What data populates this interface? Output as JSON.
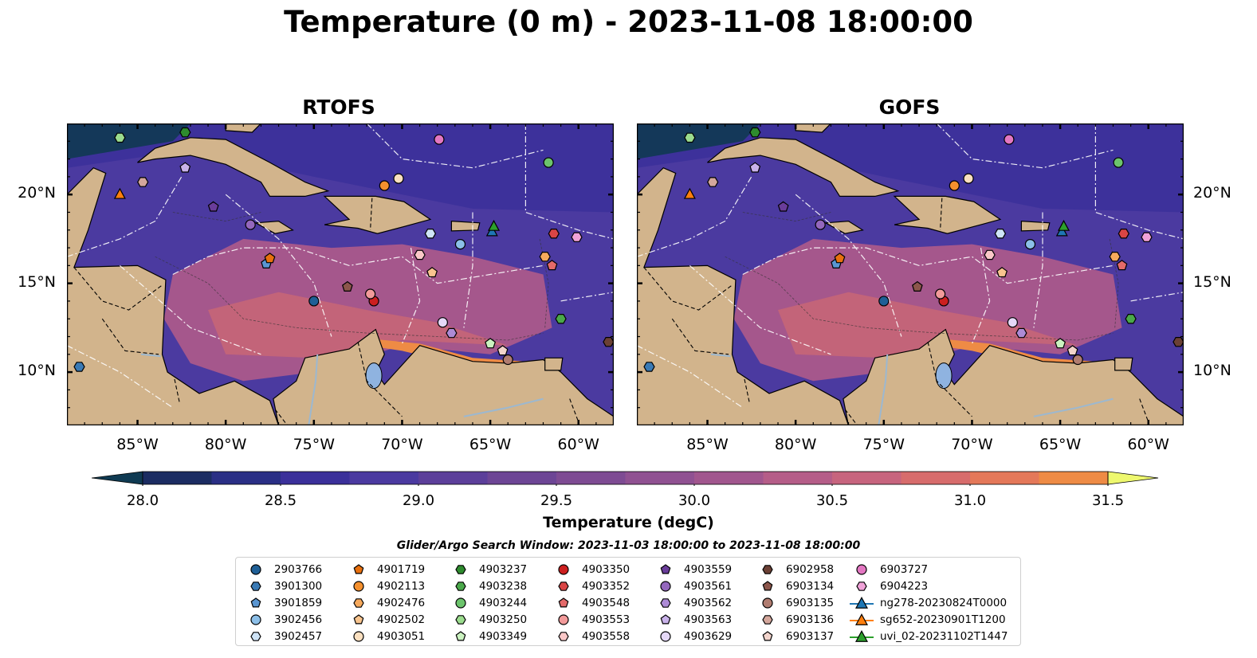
{
  "title": "Temperature (0 m) - 2023-11-08 18:00:00",
  "panels": [
    {
      "title": "RTOFS"
    },
    {
      "title": "GOFS"
    }
  ],
  "axes": {
    "lon_labels": [
      "85°W",
      "80°W",
      "75°W",
      "70°W",
      "65°W",
      "60°W"
    ],
    "lon_values": [
      -85,
      -80,
      -75,
      -70,
      -65,
      -60
    ],
    "lat_labels": [
      "20°N",
      "15°N",
      "10°N"
    ],
    "lat_values": [
      20,
      15,
      10
    ],
    "lon_range": [
      -89,
      -58
    ],
    "lat_range": [
      7,
      24
    ]
  },
  "colorbar": {
    "label": "Temperature (degC)",
    "ticks": [
      "28.0",
      "28.5",
      "29.0",
      "29.5",
      "30.0",
      "30.5",
      "31.0",
      "31.5"
    ],
    "tick_values": [
      28.0,
      28.5,
      29.0,
      29.5,
      30.0,
      30.5,
      31.0,
      31.5
    ],
    "range": [
      28.0,
      31.5
    ],
    "extend": "both",
    "colors": [
      "#0f3a52",
      "#1b2c62",
      "#2a2f85",
      "#3b309a",
      "#4b3aa0",
      "#5c3f9a",
      "#6d4595",
      "#7e4b93",
      "#905192",
      "#a1568e",
      "#b55d88",
      "#c7647e",
      "#d76c6c",
      "#e47859",
      "#ee8b45",
      "#f4a43c",
      "#f6c043",
      "#f7e156",
      "#eef86e"
    ]
  },
  "search_window": "Glider/Argo Search Window: 2023-11-03 18:00:00 to 2023-11-08 18:00:00",
  "legend": {
    "columns": [
      [
        {
          "label": "2903766",
          "marker": "circle",
          "color": "#1f5f96"
        },
        {
          "label": "3901300",
          "marker": "hexagon",
          "color": "#3a7ab5"
        },
        {
          "label": "3901859",
          "marker": "pentagon",
          "color": "#5a96d2"
        },
        {
          "label": "3902456",
          "marker": "circle",
          "color": "#8cbfe8"
        },
        {
          "label": "3902457",
          "marker": "hexagon",
          "color": "#cfe4f7"
        }
      ],
      [
        {
          "label": "4901719",
          "marker": "pentagon",
          "color": "#e8700e"
        },
        {
          "label": "4902113",
          "marker": "circle",
          "color": "#f4902e"
        },
        {
          "label": "4902476",
          "marker": "hexagon",
          "color": "#f6a95c"
        },
        {
          "label": "4902502",
          "marker": "pentagon",
          "color": "#f8c48e"
        },
        {
          "label": "4903051",
          "marker": "circle",
          "color": "#fbe0c0"
        }
      ],
      [
        {
          "label": "4903237",
          "marker": "hexagon",
          "color": "#2e8b2e"
        },
        {
          "label": "4903238",
          "marker": "hexagon",
          "color": "#4aa84a"
        },
        {
          "label": "4903244",
          "marker": "circle",
          "color": "#6cc46c"
        },
        {
          "label": "4903250",
          "marker": "hexagon",
          "color": "#9bdc8e"
        },
        {
          "label": "4903349",
          "marker": "pentagon",
          "color": "#cbf2c0"
        }
      ],
      [
        {
          "label": "4903350",
          "marker": "circle",
          "color": "#cc1f1f"
        },
        {
          "label": "4903352",
          "marker": "hexagon",
          "color": "#d94545"
        },
        {
          "label": "4903548",
          "marker": "pentagon",
          "color": "#e46a6a"
        },
        {
          "label": "4903553",
          "marker": "circle",
          "color": "#f29a9a"
        },
        {
          "label": "4903558",
          "marker": "hexagon",
          "color": "#fac8c8"
        }
      ],
      [
        {
          "label": "4903559",
          "marker": "pentagon",
          "color": "#6a3d9a"
        },
        {
          "label": "4903561",
          "marker": "circle",
          "color": "#9467bd"
        },
        {
          "label": "4903562",
          "marker": "hexagon",
          "color": "#ad8bd6"
        },
        {
          "label": "4903563",
          "marker": "pentagon",
          "color": "#c9b2ea"
        },
        {
          "label": "4903629",
          "marker": "circle",
          "color": "#e5d8f7"
        }
      ],
      [
        {
          "label": "6902958",
          "marker": "hexagon",
          "color": "#6b4035"
        },
        {
          "label": "6903134",
          "marker": "pentagon",
          "color": "#8c564b"
        },
        {
          "label": "6903135",
          "marker": "circle",
          "color": "#b07c70"
        },
        {
          "label": "6903136",
          "marker": "hexagon",
          "color": "#d4a79c"
        },
        {
          "label": "6903137",
          "marker": "pentagon",
          "color": "#f2d4cc"
        }
      ],
      [
        {
          "label": "6903727",
          "marker": "circle",
          "color": "#e377c2"
        },
        {
          "label": "6904223",
          "marker": "hexagon",
          "color": "#f0a2d8"
        },
        {
          "label": "ng278-20230824T0000",
          "marker": "triangle-line",
          "color": "#1f77b4"
        },
        {
          "label": "sg652-20230901T1200",
          "marker": "triangle-line",
          "color": "#ff7f0e"
        },
        {
          "label": "uvi_02-20231102T1447",
          "marker": "triangle-line",
          "color": "#2ca02c"
        }
      ]
    ]
  },
  "markers": [
    {
      "label": "2903766",
      "lon": -75.0,
      "lat": 14.0
    },
    {
      "label": "3901300",
      "lon": -88.3,
      "lat": 10.3
    },
    {
      "label": "3901859",
      "lon": -77.7,
      "lat": 16.1
    },
    {
      "label": "3902456",
      "lon": -66.7,
      "lat": 17.2
    },
    {
      "label": "3902457",
      "lon": -68.4,
      "lat": 17.8
    },
    {
      "label": "4901719",
      "lon": -77.5,
      "lat": 16.4
    },
    {
      "label": "4902113",
      "lon": -71.0,
      "lat": 20.5
    },
    {
      "label": "4902476",
      "lon": -61.9,
      "lat": 16.5
    },
    {
      "label": "4902502",
      "lon": -68.3,
      "lat": 15.6
    },
    {
      "label": "4903051",
      "lon": -70.2,
      "lat": 20.9
    },
    {
      "label": "4903237",
      "lon": -82.3,
      "lat": 23.5
    },
    {
      "label": "4903238",
      "lon": -61.0,
      "lat": 13.0
    },
    {
      "label": "4903244",
      "lon": -61.7,
      "lat": 21.8
    },
    {
      "label": "4903250",
      "lon": -86.0,
      "lat": 23.2
    },
    {
      "label": "4903349",
      "lon": -65.0,
      "lat": 11.6
    },
    {
      "label": "4903350",
      "lon": -71.6,
      "lat": 14.0
    },
    {
      "label": "4903352",
      "lon": -61.4,
      "lat": 17.8
    },
    {
      "label": "4903548",
      "lon": -61.5,
      "lat": 16.0
    },
    {
      "label": "4903553",
      "lon": -71.8,
      "lat": 14.4
    },
    {
      "label": "4903558",
      "lon": -69.0,
      "lat": 16.6
    },
    {
      "label": "4903559",
      "lon": -80.7,
      "lat": 19.3
    },
    {
      "label": "4903561",
      "lon": -78.6,
      "lat": 18.3
    },
    {
      "label": "4903562",
      "lon": -67.2,
      "lat": 12.2
    },
    {
      "label": "4903563",
      "lon": -82.3,
      "lat": 21.5
    },
    {
      "label": "4903629",
      "lon": -67.7,
      "lat": 12.8
    },
    {
      "label": "6902958",
      "lon": -58.3,
      "lat": 11.7
    },
    {
      "label": "6903134",
      "lon": -73.1,
      "lat": 14.8
    },
    {
      "label": "6903135",
      "lon": -64.0,
      "lat": 10.7
    },
    {
      "label": "6903136",
      "lon": -84.7,
      "lat": 20.7
    },
    {
      "label": "6903137",
      "lon": -64.3,
      "lat": 11.2
    },
    {
      "label": "6903727",
      "lon": -67.9,
      "lat": 23.1
    },
    {
      "label": "6904223",
      "lon": -60.1,
      "lat": 17.6
    },
    {
      "label": "ng278-20230824T0000",
      "lon": -64.9,
      "lat": 17.9
    },
    {
      "label": "sg652-20230901T1200",
      "lon": -86.0,
      "lat": 20.0
    },
    {
      "label": "uvi_02-20231102T1447",
      "lon": -64.8,
      "lat": 18.2
    }
  ]
}
